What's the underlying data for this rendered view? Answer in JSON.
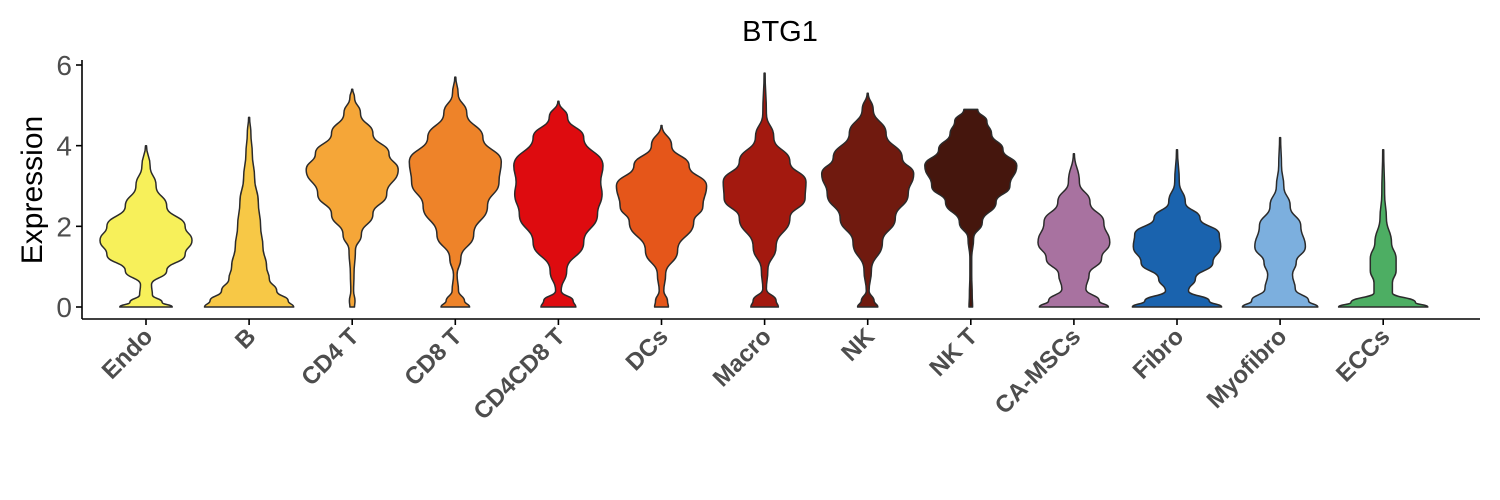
{
  "chart_data": {
    "type": "violin",
    "title": "BTG1",
    "xlabel": "",
    "ylabel": "Expression",
    "ylim": [
      0,
      6
    ],
    "yticks": [
      0,
      2,
      4,
      6
    ],
    "grid": false,
    "legend": "none",
    "categories": [
      "Endo",
      "B",
      "CD4 T",
      "CD8 T",
      "CD4CD8 T",
      "DCs",
      "Macro",
      "NK",
      "NK T",
      "CA-MSCs",
      "Fibro",
      "Myofibro",
      "ECCs"
    ],
    "colors": [
      "#F7F05A",
      "#F7C846",
      "#F5A638",
      "#EE8329",
      "#DE0B0F",
      "#E5561A",
      "#A3190F",
      "#701A0F",
      "#45160D",
      "#A872A0",
      "#1A63AE",
      "#7CAFDE",
      "#4DAE63"
    ],
    "series": [
      {
        "name": "Endo",
        "max": 4.0,
        "density": [
          [
            0,
            0.57
          ],
          [
            0.12,
            0.35
          ],
          [
            0.3,
            0.14
          ],
          [
            0.55,
            0.12
          ],
          [
            0.9,
            0.45
          ],
          [
            1.3,
            0.85
          ],
          [
            1.65,
            1.0
          ],
          [
            2.0,
            0.85
          ],
          [
            2.5,
            0.45
          ],
          [
            3.0,
            0.22
          ],
          [
            3.5,
            0.09
          ],
          [
            4.0,
            0.01
          ]
        ]
      },
      {
        "name": "B",
        "max": 4.7,
        "density": [
          [
            0,
            0.97
          ],
          [
            0.15,
            0.85
          ],
          [
            0.4,
            0.6
          ],
          [
            0.7,
            0.44
          ],
          [
            1.0,
            0.38
          ],
          [
            1.5,
            0.3
          ],
          [
            2.0,
            0.25
          ],
          [
            2.6,
            0.2
          ],
          [
            3.2,
            0.12
          ],
          [
            3.8,
            0.07
          ],
          [
            4.3,
            0.04
          ],
          [
            4.7,
            0.01
          ]
        ]
      },
      {
        "name": "CD4 T",
        "max": 5.4,
        "density": [
          [
            0,
            0.05
          ],
          [
            0.15,
            0.06
          ],
          [
            0.4,
            0.03
          ],
          [
            0.8,
            0.04
          ],
          [
            1.4,
            0.07
          ],
          [
            1.8,
            0.2
          ],
          [
            2.3,
            0.45
          ],
          [
            2.8,
            0.75
          ],
          [
            3.4,
            1.0
          ],
          [
            3.8,
            0.8
          ],
          [
            4.3,
            0.45
          ],
          [
            4.8,
            0.18
          ],
          [
            5.2,
            0.05
          ],
          [
            5.4,
            0.01
          ]
        ]
      },
      {
        "name": "CD8 T",
        "max": 5.7,
        "density": [
          [
            0,
            0.31
          ],
          [
            0.15,
            0.2
          ],
          [
            0.4,
            0.07
          ],
          [
            0.8,
            0.04
          ],
          [
            1.2,
            0.12
          ],
          [
            1.8,
            0.4
          ],
          [
            2.5,
            0.7
          ],
          [
            3.1,
            0.95
          ],
          [
            3.6,
            1.0
          ],
          [
            4.2,
            0.6
          ],
          [
            4.8,
            0.25
          ],
          [
            5.3,
            0.06
          ],
          [
            5.7,
            0.01
          ]
        ]
      },
      {
        "name": "CD4CD8 T",
        "max": 5.1,
        "density": [
          [
            0,
            0.38
          ],
          [
            0.15,
            0.32
          ],
          [
            0.4,
            0.06
          ],
          [
            0.9,
            0.18
          ],
          [
            1.6,
            0.55
          ],
          [
            2.3,
            0.85
          ],
          [
            2.8,
            0.95
          ],
          [
            3.1,
            0.92
          ],
          [
            3.5,
            0.97
          ],
          [
            4.2,
            0.55
          ],
          [
            4.7,
            0.2
          ],
          [
            5.1,
            0.01
          ]
        ]
      },
      {
        "name": "DCs",
        "max": 4.5,
        "density": [
          [
            0,
            0.15
          ],
          [
            0.15,
            0.13
          ],
          [
            0.4,
            0.05
          ],
          [
            0.8,
            0.09
          ],
          [
            1.4,
            0.35
          ],
          [
            2.1,
            0.7
          ],
          [
            2.5,
            0.9
          ],
          [
            3.0,
            0.98
          ],
          [
            3.5,
            0.6
          ],
          [
            4.0,
            0.22
          ],
          [
            4.5,
            0.01
          ]
        ]
      },
      {
        "name": "Macro",
        "max": 5.8,
        "density": [
          [
            0,
            0.3
          ],
          [
            0.15,
            0.25
          ],
          [
            0.45,
            0.04
          ],
          [
            0.9,
            0.07
          ],
          [
            1.5,
            0.25
          ],
          [
            2.2,
            0.55
          ],
          [
            2.7,
            0.88
          ],
          [
            3.1,
            0.9
          ],
          [
            3.6,
            0.55
          ],
          [
            4.2,
            0.2
          ],
          [
            4.8,
            0.04
          ],
          [
            5.8,
            0.01
          ]
        ]
      },
      {
        "name": "NK",
        "max": 5.3,
        "density": [
          [
            0,
            0.22
          ],
          [
            0.15,
            0.14
          ],
          [
            0.4,
            0.03
          ],
          [
            0.9,
            0.08
          ],
          [
            1.6,
            0.32
          ],
          [
            2.2,
            0.6
          ],
          [
            2.8,
            0.88
          ],
          [
            3.3,
            1.0
          ],
          [
            3.7,
            0.75
          ],
          [
            4.3,
            0.4
          ],
          [
            4.9,
            0.12
          ],
          [
            5.3,
            0.01
          ]
        ]
      },
      {
        "name": "NK T",
        "max": 4.9,
        "density": [
          [
            0,
            0.04
          ],
          [
            0.3,
            0.03
          ],
          [
            0.8,
            0.02
          ],
          [
            1.2,
            0.02
          ],
          [
            1.7,
            0.06
          ],
          [
            2.1,
            0.25
          ],
          [
            2.6,
            0.55
          ],
          [
            3.0,
            0.85
          ],
          [
            3.5,
            1.0
          ],
          [
            3.9,
            0.7
          ],
          [
            4.3,
            0.45
          ],
          [
            4.6,
            0.35
          ],
          [
            4.9,
            0.15
          ]
        ]
      },
      {
        "name": "CA-MSCs",
        "max": 3.8,
        "density": [
          [
            0,
            0.75
          ],
          [
            0.15,
            0.55
          ],
          [
            0.45,
            0.26
          ],
          [
            0.8,
            0.33
          ],
          [
            1.2,
            0.6
          ],
          [
            1.6,
            0.78
          ],
          [
            2.1,
            0.65
          ],
          [
            2.6,
            0.35
          ],
          [
            3.1,
            0.12
          ],
          [
            3.8,
            0.01
          ]
        ]
      },
      {
        "name": "Fibro",
        "max": 3.9,
        "density": [
          [
            0,
            0.97
          ],
          [
            0.15,
            0.7
          ],
          [
            0.4,
            0.25
          ],
          [
            0.7,
            0.4
          ],
          [
            1.1,
            0.78
          ],
          [
            1.5,
            0.95
          ],
          [
            1.8,
            0.92
          ],
          [
            2.2,
            0.5
          ],
          [
            2.6,
            0.18
          ],
          [
            3.1,
            0.05
          ],
          [
            3.9,
            0.01
          ]
        ]
      },
      {
        "name": "Myofibro",
        "max": 4.2,
        "density": [
          [
            0,
            0.82
          ],
          [
            0.15,
            0.62
          ],
          [
            0.45,
            0.33
          ],
          [
            0.8,
            0.27
          ],
          [
            1.1,
            0.35
          ],
          [
            1.5,
            0.55
          ],
          [
            2.0,
            0.45
          ],
          [
            2.5,
            0.22
          ],
          [
            3.0,
            0.08
          ],
          [
            3.5,
            0.03
          ],
          [
            4.2,
            0.01
          ]
        ]
      },
      {
        "name": "ECCs",
        "max": 3.9,
        "density": [
          [
            0,
            0.97
          ],
          [
            0.12,
            0.7
          ],
          [
            0.35,
            0.2
          ],
          [
            0.6,
            0.2
          ],
          [
            0.9,
            0.28
          ],
          [
            1.2,
            0.28
          ],
          [
            1.6,
            0.18
          ],
          [
            2.2,
            0.07
          ],
          [
            2.8,
            0.03
          ],
          [
            3.9,
            0.01
          ]
        ]
      }
    ]
  }
}
